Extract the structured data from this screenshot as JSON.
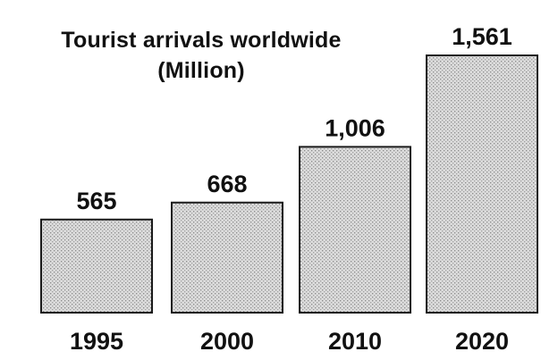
{
  "chart_data": {
    "type": "bar",
    "title": "Tourist arrivals worldwide",
    "subtitle": "(Million)",
    "categories": [
      "1995",
      "2000",
      "2010",
      "2020"
    ],
    "values": [
      565,
      668,
      1006,
      1561
    ],
    "value_labels": [
      "565",
      "668",
      "1,006",
      "1,561"
    ],
    "xlabel": "",
    "ylabel": "",
    "ylim": [
      0,
      1561
    ],
    "grid": false,
    "legend": "none",
    "colors": {
      "bar_fill": "#dcdcdc",
      "bar_dots": "#8a8a8a",
      "bar_stroke": "#1a1a1a",
      "text": "#111111"
    }
  }
}
